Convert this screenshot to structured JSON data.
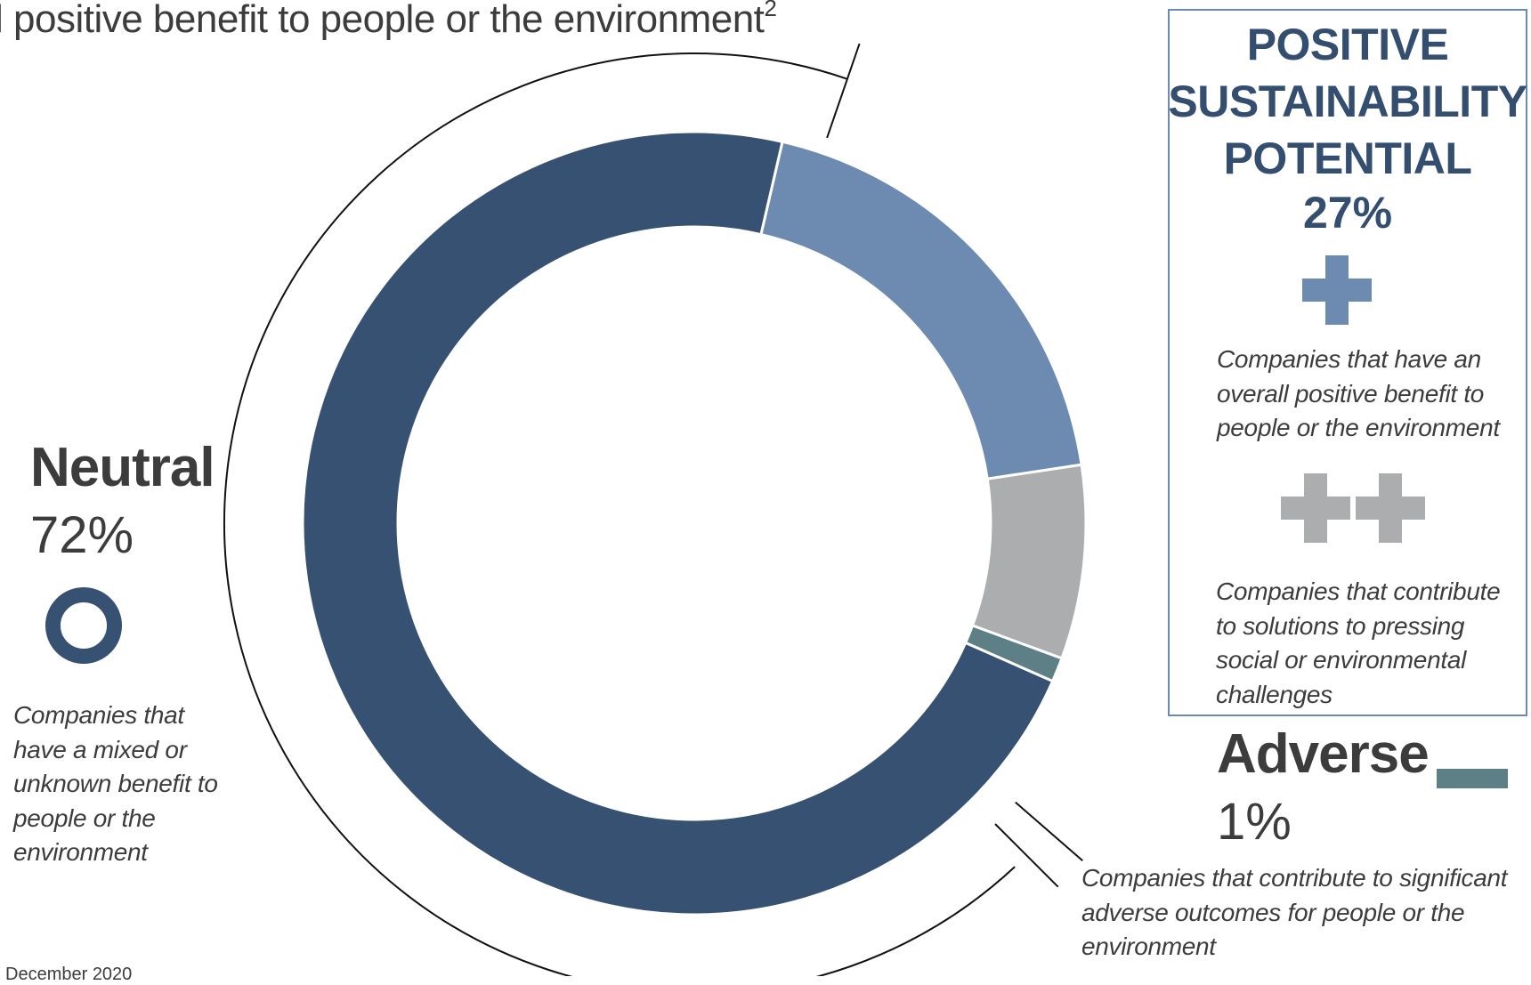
{
  "header": {
    "title_text": "l positive benefit to people or the environment",
    "title_sup": "2"
  },
  "chart_data": {
    "type": "pie",
    "variant": "donut",
    "slices": [
      {
        "label": "Positive",
        "value": 19.0,
        "color": "#6d8bb0"
      },
      {
        "label": "Positive (contribute to solutions)",
        "value": 8.0,
        "color": "#acadaf"
      },
      {
        "label": "Adverse",
        "value": 1.0,
        "color": "#5d7f86"
      },
      {
        "label": "Neutral",
        "value": 72.0,
        "color": "#375172"
      }
    ],
    "start_angle_deg": 13,
    "direction": "clockwise"
  },
  "neutral": {
    "heading": "Neutral",
    "percent": "72%",
    "description_lines": [
      "Companies that",
      "have a mixed or",
      "unknown benefit to",
      "people or the",
      "environment"
    ],
    "icon": "ring-icon",
    "color": "#375172"
  },
  "positive": {
    "title_lines": [
      "POSITIVE",
      "SUSTAINABILITY",
      "POTENTIAL"
    ],
    "percent": "27%",
    "single_plus_icon": "plus-icon",
    "single_plus_color": "#6d8bb0",
    "single_desc_lines": [
      "Companies that have an",
      "overall positive benefit to",
      "people or the environment"
    ],
    "double_plus_icon": "double-plus-icon",
    "double_plus_color": "#acadaf",
    "double_desc_lines": [
      "Companies that contribute",
      "to solutions to pressing",
      "social or environmental",
      "challenges"
    ],
    "border_color": "#6d8bb0",
    "title_color": "#344e70"
  },
  "adverse": {
    "heading": "Adverse",
    "percent": "1%",
    "description_lines": [
      "Companies that contribute to significant",
      "adverse outcomes for people or the",
      "environment"
    ],
    "swatch_color": "#5d7f86"
  },
  "footnote": {
    "text": "December 2020"
  }
}
